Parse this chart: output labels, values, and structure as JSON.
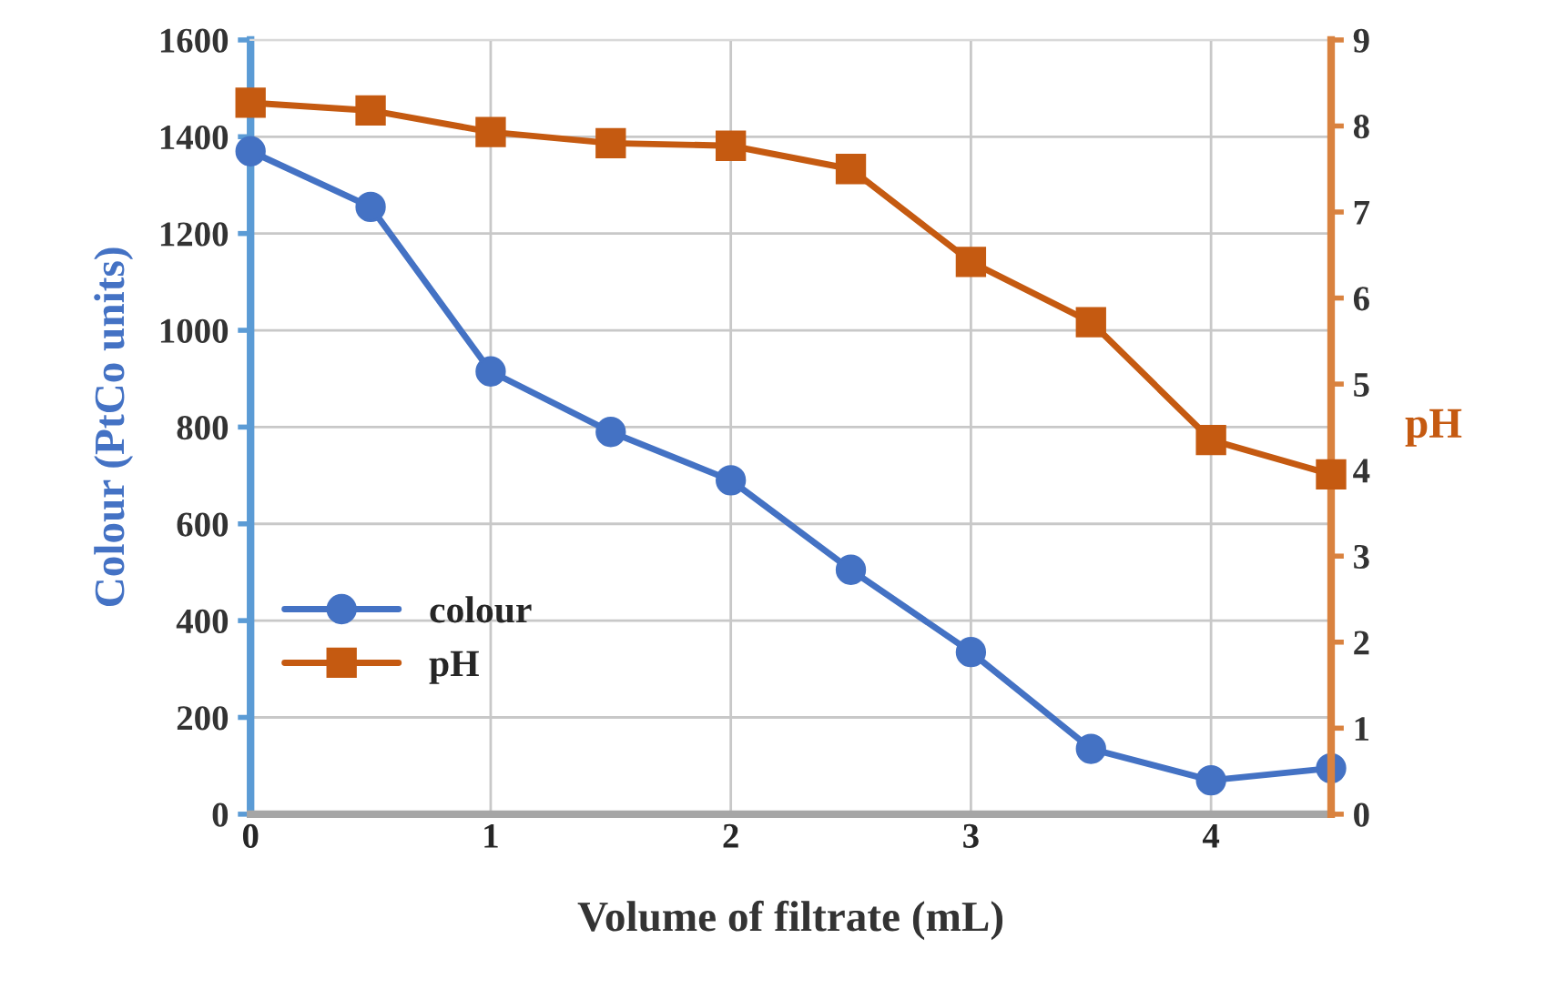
{
  "chart_data": {
    "type": "line",
    "xlabel": "Volume of filtrate (mL)",
    "ylabel": "Colour (PtCo units)",
    "y2label": "pH",
    "x": [
      0,
      0.5,
      1,
      1.5,
      2,
      2.5,
      3,
      3.5,
      4,
      4.5
    ],
    "series": [
      {
        "name": "colour",
        "color": "#4472c4",
        "marker": "circle",
        "values": [
          1370,
          1255,
          915,
          790,
          690,
          505,
          335,
          135,
          70,
          95
        ]
      },
      {
        "name": "pH",
        "color": "#c55a11",
        "marker": "square",
        "axis": "y2",
        "values": [
          8.27,
          8.18,
          7.93,
          7.8,
          7.77,
          7.5,
          6.42,
          5.72,
          4.35,
          3.95
        ]
      }
    ],
    "xlim": [
      0,
      4.5
    ],
    "xticks": [
      0,
      1,
      2,
      3,
      4
    ],
    "ylim": [
      0,
      1600
    ],
    "yticks": [
      0,
      200,
      400,
      600,
      800,
      1000,
      1200,
      1400,
      1600
    ],
    "y2lim": [
      0,
      9
    ],
    "y2ticks": [
      0,
      1,
      2,
      3,
      4,
      5,
      6,
      7,
      8,
      9
    ],
    "grid": true,
    "legend": "left",
    "line_style": "solid"
  }
}
